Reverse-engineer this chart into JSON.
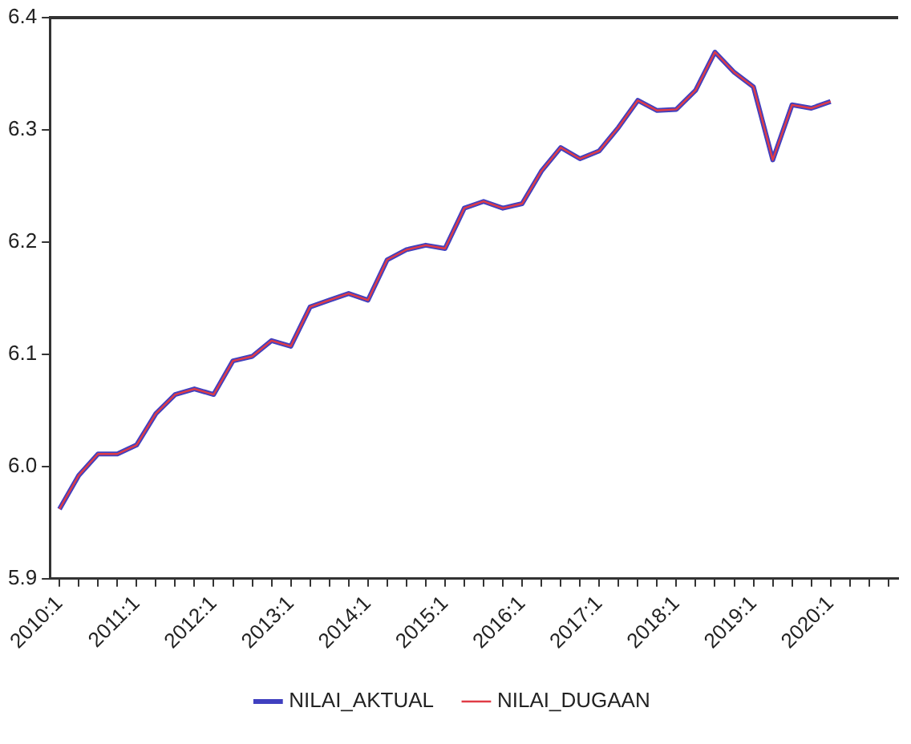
{
  "chart_data": {
    "type": "line",
    "categories": [
      "2010:1",
      null,
      null,
      null,
      "2011:1",
      null,
      null,
      null,
      "2012:1",
      null,
      null,
      null,
      "2013:1",
      null,
      null,
      null,
      "2014:1",
      null,
      null,
      null,
      "2015:1",
      null,
      null,
      null,
      "2016:1",
      null,
      null,
      null,
      "2017:1",
      null,
      null,
      null,
      "2018:1",
      null,
      null,
      null,
      "2019:1",
      null,
      null,
      null,
      "2020:1",
      null,
      null,
      null
    ],
    "series": [
      {
        "name": "NILAI_AKTUAL",
        "color": "#4040c0",
        "values": [
          5.962,
          5.992,
          6.011,
          6.011,
          6.019,
          6.047,
          6.064,
          6.069,
          6.064,
          6.094,
          6.098,
          6.112,
          6.107,
          6.142,
          6.148,
          6.154,
          6.148,
          6.184,
          6.193,
          6.197,
          6.194,
          6.23,
          6.236,
          6.23,
          6.234,
          6.263,
          6.284,
          6.274,
          6.281,
          6.302,
          6.326,
          6.317,
          6.318,
          6.335,
          6.369,
          6.351,
          6.338,
          6.273,
          6.322,
          6.319,
          6.325,
          null,
          null,
          null
        ]
      },
      {
        "name": "NILAI_DUGAAN",
        "color": "#e03c46",
        "values": [
          5.962,
          5.992,
          6.011,
          6.011,
          6.019,
          6.047,
          6.064,
          6.069,
          6.064,
          6.094,
          6.098,
          6.112,
          6.107,
          6.142,
          6.148,
          6.154,
          6.148,
          6.184,
          6.193,
          6.197,
          6.194,
          6.23,
          6.236,
          6.23,
          6.234,
          6.263,
          6.284,
          6.274,
          6.281,
          6.302,
          6.326,
          6.317,
          6.318,
          6.335,
          6.369,
          6.351,
          6.338,
          6.273,
          6.322,
          6.319,
          6.325,
          null,
          null,
          null
        ]
      }
    ],
    "ylim": [
      5.9,
      6.4
    ],
    "yticks": [
      5.9,
      {
        "value": 6,
        "label": "6.0"
      },
      6.1,
      6.2,
      6.3,
      6.4
    ],
    "grid": false,
    "legend": "bottom",
    "marker": "none",
    "line_style": "solid"
  }
}
